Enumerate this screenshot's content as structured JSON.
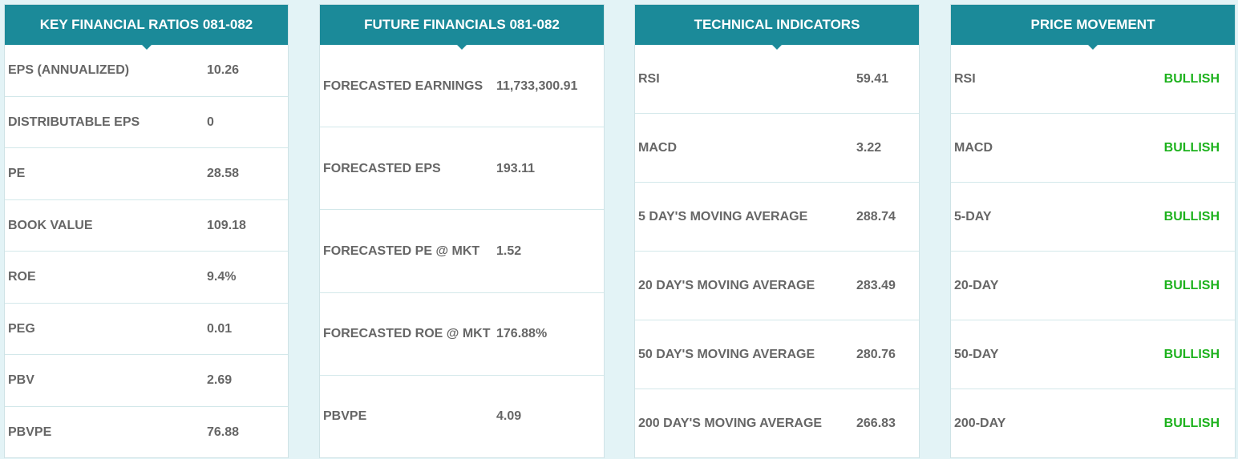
{
  "key_ratios": {
    "title": "KEY FINANCIAL RATIOS 081-082",
    "rows": [
      {
        "label": "EPS (ANNUALIZED)",
        "value": "10.26"
      },
      {
        "label": "DISTRIBUTABLE EPS",
        "value": "0"
      },
      {
        "label": "PE",
        "value": "28.58"
      },
      {
        "label": "BOOK VALUE",
        "value": "109.18"
      },
      {
        "label": "ROE",
        "value": "9.4%"
      },
      {
        "label": "PEG",
        "value": "0.01"
      },
      {
        "label": "PBV",
        "value": "2.69"
      },
      {
        "label": "PBVPE",
        "value": "76.88"
      }
    ]
  },
  "future_financials": {
    "title": "FUTURE FINANCIALS 081-082",
    "rows": [
      {
        "label": "FORECASTED EARNINGS",
        "value": "11,733,300.91"
      },
      {
        "label": "FORECASTED EPS",
        "value": "193.11"
      },
      {
        "label": "FORECASTED PE @ MKT",
        "value": "1.52"
      },
      {
        "label": "FORECASTED ROE @ MKT",
        "value": "176.88%"
      },
      {
        "label": "PBVPE",
        "value": "4.09"
      }
    ]
  },
  "technical_indicators": {
    "title": "TECHNICAL INDICATORS",
    "rows": [
      {
        "label": "RSI",
        "value": "59.41"
      },
      {
        "label": "MACD",
        "value": "3.22"
      },
      {
        "label": "5 DAY'S MOVING AVERAGE",
        "value": "288.74"
      },
      {
        "label": "20 DAY'S MOVING AVERAGE",
        "value": "283.49"
      },
      {
        "label": "50 DAY'S MOVING AVERAGE",
        "value": "280.76"
      },
      {
        "label": "200 DAY'S MOVING AVERAGE",
        "value": "266.83"
      }
    ]
  },
  "price_movement": {
    "title": "PRICE MOVEMENT",
    "rows": [
      {
        "label": "RSI",
        "value": "BULLISH"
      },
      {
        "label": "MACD",
        "value": "BULLISH"
      },
      {
        "label": "5-DAY",
        "value": "BULLISH"
      },
      {
        "label": "20-DAY",
        "value": "BULLISH"
      },
      {
        "label": "50-DAY",
        "value": "BULLISH"
      },
      {
        "label": "200-DAY",
        "value": "BULLISH"
      }
    ]
  },
  "colors": {
    "header": "#1b8a99",
    "background": "#e3f3f6",
    "text": "#666666",
    "bullish": "#1db21d"
  }
}
